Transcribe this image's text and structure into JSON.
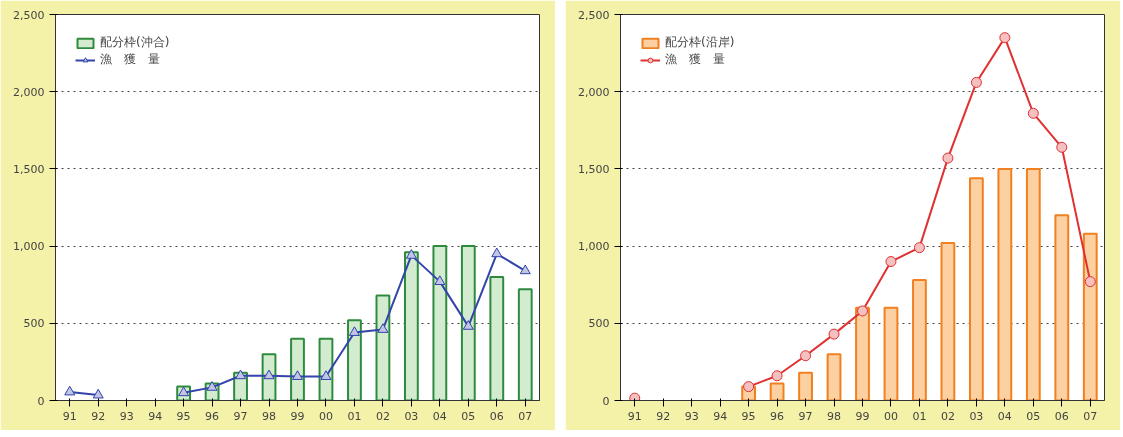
{
  "chart_data": [
    {
      "type": "bar",
      "categories": [
        "91",
        "92",
        "93",
        "94",
        "95",
        "96",
        "97",
        "98",
        "99",
        "00",
        "01",
        "02",
        "03",
        "04",
        "05",
        "06",
        "07"
      ],
      "ylim": [
        0,
        2500
      ],
      "yticks": [
        0,
        {
          "value": 500,
          "label": "500"
        },
        {
          "value": 1000,
          "label": "1,000"
        },
        {
          "value": 1500,
          "label": "1,500"
        },
        {
          "value": 2000,
          "label": "2,000"
        },
        {
          "value": 2500,
          "label": "2,500"
        }
      ],
      "grid": "y",
      "legend": "top left",
      "series": [
        {
          "name": "配分枠(沖合)",
          "color": "#d3ecd0",
          "values": [
            null,
            null,
            null,
            null,
            90,
            110,
            180,
            300,
            400,
            400,
            520,
            680,
            960,
            1000,
            1000,
            800,
            720
          ]
        },
        {
          "name": "漁　獲　量",
          "type": "line",
          "marker": "triangle",
          "color": "#3344aa",
          "values": [
            55,
            35,
            null,
            null,
            50,
            85,
            160,
            160,
            155,
            155,
            440,
            460,
            940,
            770,
            480,
            950,
            840
          ]
        }
      ]
    },
    {
      "type": "bar",
      "categories": [
        "91",
        "92",
        "93",
        "94",
        "95",
        "96",
        "97",
        "98",
        "99",
        "00",
        "01",
        "02",
        "03",
        "04",
        "05",
        "06",
        "07"
      ],
      "ylim": [
        0,
        2500
      ],
      "yticks": [
        0,
        {
          "value": 500,
          "label": "500"
        },
        {
          "value": 1000,
          "label": "1,000"
        },
        {
          "value": 1500,
          "label": "1,500"
        },
        {
          "value": 2000,
          "label": "2,000"
        },
        {
          "value": 2500,
          "label": "2,500"
        }
      ],
      "grid": "y",
      "legend": "top left",
      "series": [
        {
          "name": "配分枠(沿岸)",
          "color": "#fcd0a0",
          "values": [
            null,
            null,
            null,
            null,
            90,
            110,
            180,
            300,
            600,
            600,
            780,
            1020,
            1440,
            1500,
            1500,
            1200,
            1080
          ]
        },
        {
          "name": "漁　獲　量",
          "type": "line",
          "marker": "circle",
          "color": "#e03030",
          "values": [
            15,
            null,
            null,
            null,
            90,
            160,
            290,
            430,
            580,
            900,
            990,
            1570,
            2060,
            2350,
            1860,
            1640,
            770
          ]
        }
      ]
    }
  ]
}
